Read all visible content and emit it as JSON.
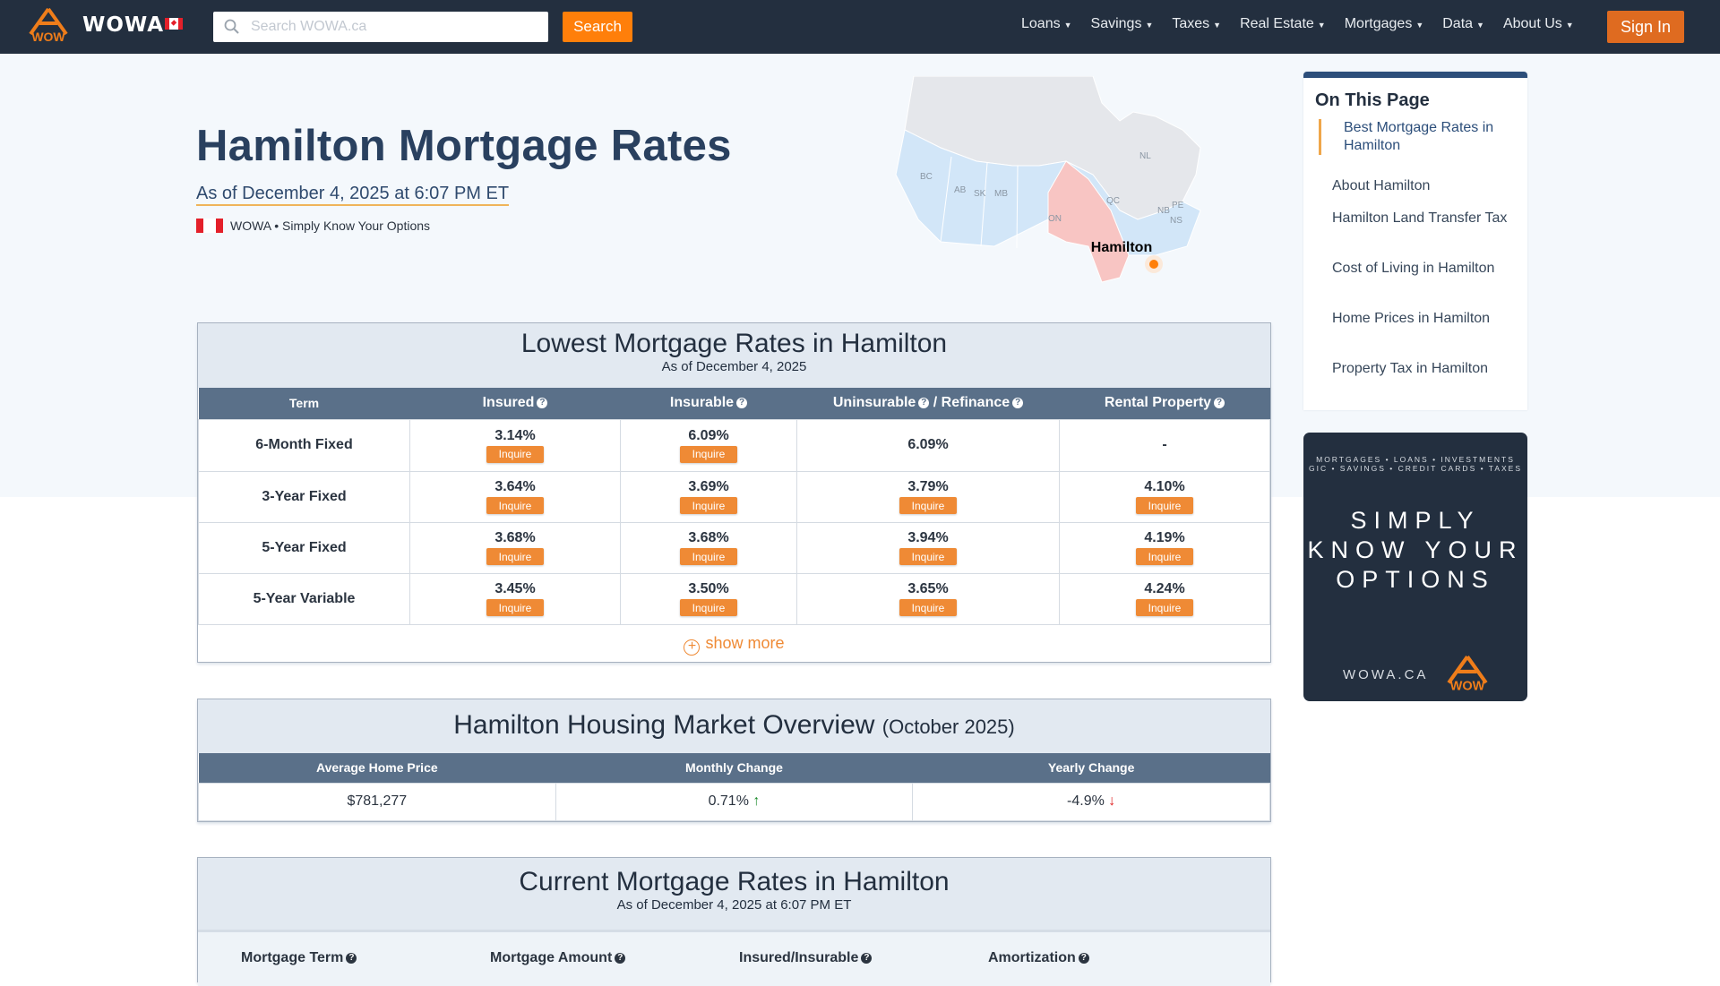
{
  "nav": {
    "brand": "WOWA",
    "search_placeholder": "Search WOWA.ca",
    "search_button": "Search",
    "menu": [
      "Loans",
      "Savings",
      "Taxes",
      "Real Estate",
      "Mortgages",
      "Data",
      "About Us"
    ],
    "sign_in": "Sign In"
  },
  "hero": {
    "title": "Hamilton Mortgage Rates",
    "as_of": "As of December 4, 2025 at 6:07 PM ET",
    "tagline": "WOWA • Simply Know Your Options",
    "map": {
      "labels": [
        "BC",
        "AB",
        "SK",
        "MB",
        "ON",
        "QC",
        "NL",
        "NB",
        "PE",
        "NS"
      ],
      "city": "Hamilton",
      "highlight_color": "#f8c5c3",
      "province_color": "#d2e6f8",
      "marker_color": "#ff7f0a"
    }
  },
  "toc": {
    "title": "On This Page",
    "items": [
      "Best Mortgage Rates in Hamilton",
      "About Hamilton",
      "Hamilton Land Transfer Tax",
      "Cost of Living in Hamilton",
      "Home Prices in Hamilton",
      "Property Tax in Hamilton"
    ]
  },
  "ad": {
    "line1": "MORTGAGES • LOANS • INVESTMENTS",
    "line2": "GIC • SAVINGS • CREDIT CARDS • TAXES",
    "headline": "SIMPLY KNOW YOUR OPTIONS",
    "url": "WOWA.CA"
  },
  "lowest": {
    "title": "Lowest Mortgage Rates in Hamilton",
    "subtitle": "As of December 4, 2025",
    "headers": [
      "Term",
      "Insured",
      "Insurable",
      "Uninsurable",
      "/ Refinance",
      "Rental Property"
    ],
    "inquire": "Inquire",
    "rows": [
      {
        "term": "6-Month Fixed",
        "insured": "3.14%",
        "insurable": "6.09%",
        "uninsurable": "6.09%",
        "rental": "-"
      },
      {
        "term": "3-Year Fixed",
        "insured": "3.64%",
        "insurable": "3.69%",
        "uninsurable": "3.79%",
        "rental": "4.10%"
      },
      {
        "term": "5-Year Fixed",
        "insured": "3.68%",
        "insurable": "3.68%",
        "uninsurable": "3.94%",
        "rental": "4.19%"
      },
      {
        "term": "5-Year Variable",
        "insured": "3.45%",
        "insurable": "3.50%",
        "uninsurable": "3.65%",
        "rental": "4.24%"
      }
    ],
    "show_more": "show more"
  },
  "housing": {
    "title": "Hamilton Housing Market Overview",
    "period": "(October 2025)",
    "headers": [
      "Average Home Price",
      "Monthly Change",
      "Yearly Change"
    ],
    "values": {
      "price": "$781,277",
      "monthly": "0.71%",
      "yearly": "-4.9%"
    },
    "up_color": "#1a8a2a",
    "down_color": "#e02020"
  },
  "current": {
    "title": "Current Mortgage Rates in Hamilton",
    "subtitle": "As of December 4, 2025 at 6:07 PM ET",
    "filters": [
      "Mortgage Term",
      "Mortgage Amount",
      "Insured/Insurable",
      "Amortization"
    ]
  }
}
